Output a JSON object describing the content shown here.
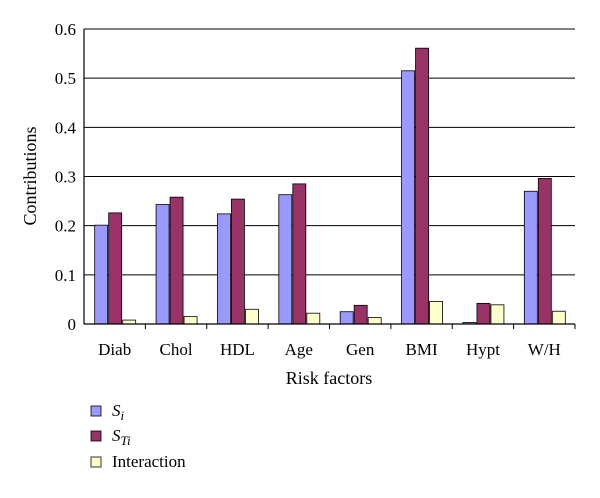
{
  "chart_data": {
    "type": "bar",
    "categories": [
      "Diab",
      "Chol",
      "HDL",
      "Age",
      "Gen",
      "BMI",
      "Hypt",
      "W/H"
    ],
    "series": [
      {
        "name": "S",
        "subscript": "i",
        "color": "#9999ff",
        "values": [
          0.201,
          0.243,
          0.224,
          0.263,
          0.025,
          0.515,
          0.003,
          0.27
        ]
      },
      {
        "name": "S",
        "subscript": "Ti",
        "color": "#993366",
        "values": [
          0.226,
          0.258,
          0.254,
          0.285,
          0.038,
          0.561,
          0.042,
          0.296
        ]
      },
      {
        "name": "Interaction",
        "subscript": "",
        "color": "#ffffcc",
        "values": [
          0.008,
          0.015,
          0.03,
          0.022,
          0.013,
          0.046,
          0.039,
          0.026
        ]
      }
    ],
    "title": "",
    "xlabel": "Risk factors",
    "ylabel": "Contributions",
    "ylim": [
      0,
      0.6
    ],
    "yticks": [
      "0",
      "0.1",
      "0.2",
      "0.3",
      "0.4",
      "0.5",
      "0.6"
    ],
    "grid": true,
    "legend": "bottom-left"
  }
}
